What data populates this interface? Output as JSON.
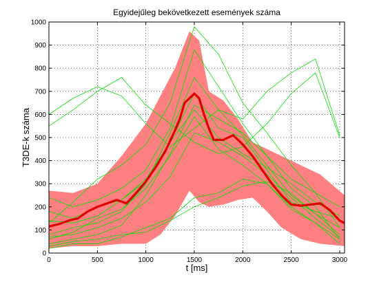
{
  "chart_data": {
    "type": "line",
    "title": "Egyidejűleg bekövetkezett események száma",
    "xlabel": "t [ms]",
    "ylabel": "T3DE-k száma",
    "xlim": [
      0,
      3050
    ],
    "ylim": [
      0,
      1000
    ],
    "xticks": [
      0,
      500,
      1000,
      1500,
      2000,
      2500,
      3000
    ],
    "yticks": [
      0,
      100,
      200,
      300,
      400,
      500,
      600,
      700,
      800,
      900,
      1000
    ],
    "grid": true,
    "series": [
      {
        "kind": "band",
        "color": "#ff8080",
        "x": [
          0,
          250,
          500,
          750,
          1000,
          1150,
          1300,
          1450,
          1550,
          1650,
          1800,
          1950,
          2100,
          2250,
          2400,
          2600,
          2800,
          3050
        ],
        "upper": [
          270,
          260,
          300,
          420,
          560,
          680,
          800,
          960,
          920,
          700,
          660,
          580,
          480,
          450,
          420,
          380,
          340,
          250
        ],
        "lower": [
          20,
          30,
          30,
          40,
          40,
          80,
          160,
          270,
          220,
          200,
          210,
          230,
          240,
          180,
          110,
          60,
          40,
          30
        ]
      },
      {
        "kind": "mean",
        "color": "#e00000",
        "x": [
          0,
          100,
          200,
          300,
          400,
          500,
          600,
          700,
          800,
          900,
          1000,
          1100,
          1200,
          1300,
          1350,
          1400,
          1450,
          1500,
          1550,
          1600,
          1650,
          1700,
          1800,
          1900,
          2000,
          2100,
          2200,
          2300,
          2400,
          2500,
          2600,
          2700,
          2800,
          2900,
          3000,
          3050
        ],
        "values": [
          115,
          125,
          140,
          150,
          180,
          200,
          215,
          230,
          215,
          260,
          310,
          370,
          440,
          530,
          580,
          650,
          670,
          690,
          670,
          600,
          540,
          490,
          490,
          510,
          470,
          420,
          360,
          300,
          250,
          210,
          205,
          210,
          215,
          185,
          140,
          130
        ]
      },
      {
        "kind": "trials",
        "color": "#00e000",
        "x": [
          0,
          250,
          500,
          750,
          1000,
          1250,
          1500,
          1750,
          2000,
          2250,
          2500,
          2750,
          3000
        ],
        "lines": [
          [
            40,
            60,
            80,
            120,
            250,
            430,
            640,
            580,
            520,
            420,
            280,
            200,
            60
          ],
          [
            80,
            110,
            130,
            180,
            300,
            520,
            760,
            620,
            510,
            380,
            250,
            170,
            110
          ],
          [
            180,
            150,
            200,
            230,
            310,
            480,
            690,
            540,
            500,
            360,
            220,
            180,
            150
          ],
          [
            20,
            40,
            40,
            70,
            110,
            150,
            240,
            260,
            320,
            300,
            200,
            130,
            60
          ],
          [
            550,
            620,
            700,
            760,
            640,
            560,
            480,
            430,
            460,
            560,
            690,
            780,
            500
          ],
          [
            600,
            670,
            720,
            680,
            560,
            460,
            540,
            620,
            580,
            700,
            780,
            840,
            510
          ],
          [
            130,
            220,
            320,
            380,
            470,
            650,
            980,
            860,
            650,
            520,
            380,
            260,
            110
          ],
          [
            60,
            90,
            150,
            190,
            280,
            420,
            590,
            450,
            380,
            300,
            190,
            130,
            40
          ],
          [
            30,
            50,
            60,
            80,
            90,
            140,
            200,
            240,
            290,
            310,
            260,
            170,
            80
          ],
          [
            240,
            200,
            230,
            280,
            360,
            540,
            880,
            720,
            560,
            420,
            320,
            260,
            200
          ],
          [
            140,
            130,
            160,
            230,
            320,
            480,
            620,
            500,
            430,
            370,
            300,
            220,
            160
          ],
          [
            70,
            80,
            110,
            150,
            220,
            330,
            520,
            480,
            420,
            340,
            240,
            150,
            70
          ]
        ]
      }
    ]
  }
}
